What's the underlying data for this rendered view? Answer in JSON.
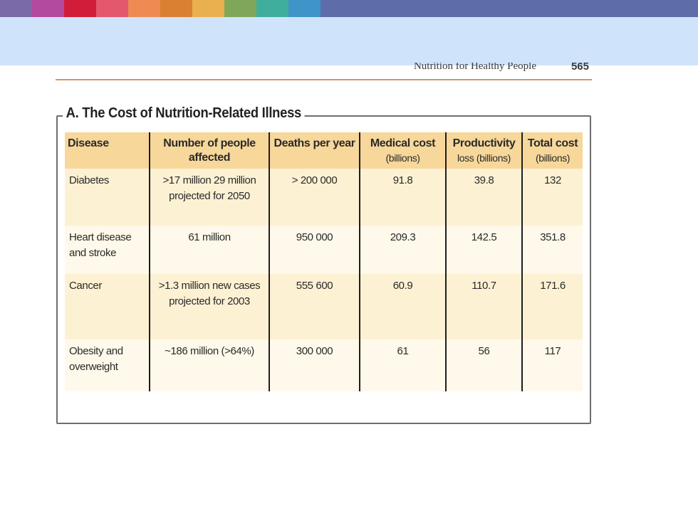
{
  "strip_colors": [
    "#7a6aa8",
    "#b34aa0",
    "#d21d3a",
    "#e3596b",
    "#ef8a53",
    "#d98032",
    "#e9b04d",
    "#80a65a",
    "#3fae9c",
    "#3f94c8"
  ],
  "strip_rest_color": "#5f6caa",
  "banner_color": "#cfe4fb",
  "running_head": {
    "text": "Nutrition for Healthy People",
    "page": "565"
  },
  "section": {
    "title": "A. The Cost of Nutrition-Related Illness",
    "headers": [
      {
        "main": "Disease",
        "sub": ""
      },
      {
        "main": "Number of people affected",
        "sub": ""
      },
      {
        "main": "Deaths per year",
        "sub": ""
      },
      {
        "main": "Medical cost",
        "sub": "(billions)"
      },
      {
        "main": "Productivity",
        "sub": "loss (billions)"
      },
      {
        "main": "Total cost",
        "sub": "(billions)"
      }
    ],
    "rows": [
      {
        "disease": "Diabetes",
        "affected": ">17 million 29 million projected for 2050",
        "deaths": "> 200 000",
        "medical": "91.8",
        "productivity": "39.8",
        "total": "132"
      },
      {
        "disease": "Heart disease and stroke",
        "affected": "61 million",
        "deaths": "950 000",
        "medical": "209.3",
        "productivity": "142.5",
        "total": "351.8"
      },
      {
        "disease": "Cancer",
        "affected": ">1.3 million new cases projected for 2003",
        "deaths": "555 600",
        "medical": "60.9",
        "productivity": "110.7",
        "total": "171.6"
      },
      {
        "disease": "Obesity and overweight",
        "affected": "~186 million (>64%)",
        "deaths": "300 000",
        "medical": "61",
        "productivity": "56",
        "total": "117"
      }
    ]
  }
}
